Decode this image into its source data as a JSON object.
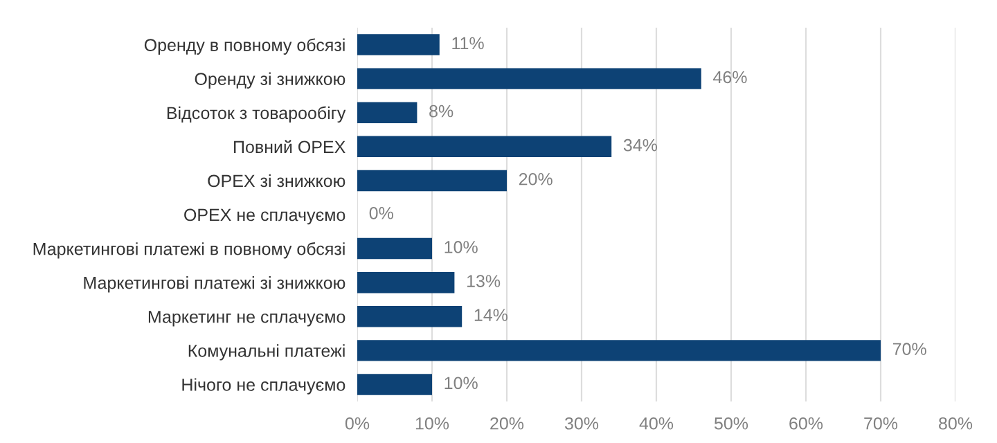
{
  "chart_data": {
    "type": "bar",
    "orientation": "horizontal",
    "categories": [
      "Оренду в повному обсязі",
      "Оренду зі знижкою",
      "Відсоток з товарообігу",
      "Повний OPEX",
      "OPEX зі знижкою",
      "OPEX не сплачуємо",
      "Маркетингові платежі в повному обсязі",
      "Маркетингові платежі зі знижкою",
      "Маркетинг не сплачуємо",
      "Комунальні платежі",
      "Нічого не сплачуємо"
    ],
    "values": [
      11,
      46,
      8,
      34,
      20,
      0,
      10,
      13,
      14,
      70,
      10
    ],
    "value_labels": [
      "11%",
      "46%",
      "8%",
      "34%",
      "20%",
      "0%",
      "10%",
      "13%",
      "14%",
      "70%",
      "10%"
    ],
    "color": "#0d4275",
    "xlim": [
      0,
      80
    ],
    "xticks": [
      {
        "value": 0,
        "label": "0%"
      },
      {
        "value": 10,
        "label": "10%"
      },
      {
        "value": 20,
        "label": "20%"
      },
      {
        "value": 30,
        "label": "30%"
      },
      {
        "value": 40,
        "label": "40%"
      },
      {
        "value": 50,
        "label": "50%"
      },
      {
        "value": 60,
        "label": "60%"
      },
      {
        "value": 70,
        "label": "70%"
      },
      {
        "value": 80,
        "label": "80%"
      }
    ],
    "grid": "x"
  }
}
